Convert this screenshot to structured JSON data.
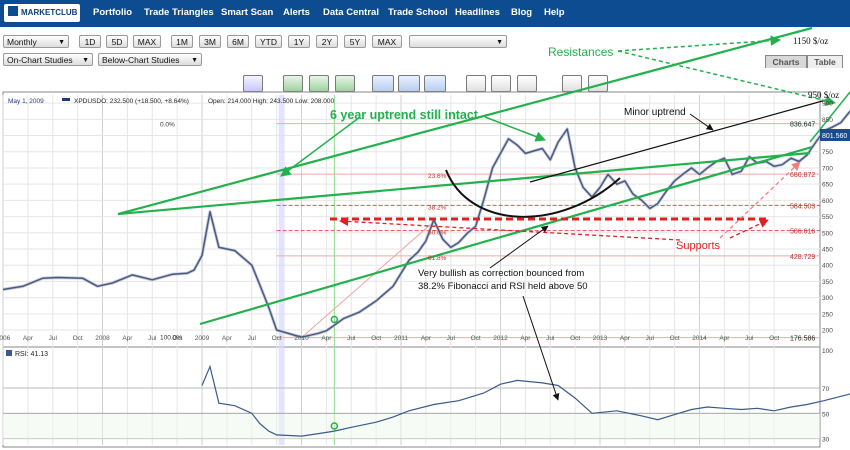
{
  "navbar": {
    "logo": "MARKETCLUB",
    "items": [
      "Portfolio",
      "Trade Triangles",
      "Smart Scan",
      "Alerts",
      "Data Central",
      "Trade School",
      "Headlines",
      "Blog",
      "Help"
    ]
  },
  "toolbar": {
    "period_select": "Monthly",
    "range_buttons": [
      "1D",
      "5D",
      "MAX",
      "1M",
      "3M",
      "6M",
      "YTD",
      "1Y",
      "2Y",
      "5Y",
      "MAX"
    ],
    "extra_select": "",
    "studies": {
      "on_chart": "On-Chart Studies",
      "below_chart": "Below-Chart Studies"
    },
    "tabs": [
      "Charts",
      "Table"
    ]
  },
  "colors": {
    "navbar": "#0e4c92",
    "price_line": "#4a5a7c",
    "trendline": "#22b14c",
    "annotation_green": "#22b14c",
    "support_red": "#e02020",
    "fib_line": "#f0a8a8",
    "grid": "#e6e6e6",
    "rsi_line": "#3a5a8c"
  },
  "chart_data": {
    "type": "line",
    "info_bar": {
      "date": "May 1, 2009",
      "symbol": "XPDUSDO: 232.500 (+18.500, +8.64%)",
      "ohlc": "Open: 214.000  High: 243.500  Low: 208.000"
    },
    "x_start": 2006.0,
    "y_axis_ticks": [
      200,
      250,
      300,
      350,
      400,
      450,
      500,
      550,
      600,
      650,
      700,
      750,
      800,
      850,
      900
    ],
    "ylim": [
      160,
      925
    ],
    "x_tick_labels": [
      "2006",
      "Apr",
      "Jul",
      "Oct",
      "2008",
      "Apr",
      "Jul",
      "Oct",
      "2009",
      "Apr",
      "Jul",
      "Oct",
      "2010",
      "Apr",
      "Jul",
      "Oct",
      "2011",
      "Apr",
      "Jul",
      "Oct",
      "2012",
      "Apr",
      "Jul",
      "Oct",
      "2013",
      "Apr",
      "Jul",
      "Oct",
      "2014",
      "Apr",
      "Jul",
      "Oct"
    ],
    "series": [
      {
        "values": [
          [
            2006.0,
            325
          ],
          [
            2006.2,
            335
          ],
          [
            2006.4,
            360
          ],
          [
            2006.55,
            362
          ],
          [
            2006.8,
            360
          ],
          [
            2006.95,
            335
          ],
          [
            2007.1,
            345
          ],
          [
            2007.3,
            370
          ],
          [
            2007.5,
            355
          ],
          [
            2007.7,
            372
          ],
          [
            2007.85,
            375
          ],
          [
            2007.92,
            385
          ],
          [
            2008.0,
            430
          ],
          [
            2008.08,
            565
          ],
          [
            2008.17,
            455
          ],
          [
            2008.33,
            445
          ],
          [
            2008.5,
            400
          ],
          [
            2008.58,
            340
          ],
          [
            2008.67,
            270
          ],
          [
            2008.75,
            200
          ],
          [
            2008.92,
            185
          ],
          [
            2009.0,
            178
          ],
          [
            2009.17,
            190
          ],
          [
            2009.25,
            198
          ],
          [
            2009.33,
            215
          ],
          [
            2009.42,
            235
          ],
          [
            2009.58,
            255
          ],
          [
            2009.75,
            290
          ],
          [
            2009.92,
            335
          ],
          [
            2010.08,
            415
          ],
          [
            2010.17,
            440
          ],
          [
            2010.25,
            475
          ],
          [
            2010.33,
            540
          ],
          [
            2010.42,
            480
          ],
          [
            2010.5,
            455
          ],
          [
            2010.58,
            470
          ],
          [
            2010.67,
            500
          ],
          [
            2010.75,
            520
          ],
          [
            2010.83,
            600
          ],
          [
            2010.92,
            700
          ],
          [
            2011.08,
            790
          ],
          [
            2011.17,
            770
          ],
          [
            2011.25,
            745
          ],
          [
            2011.42,
            760
          ],
          [
            2011.5,
            725
          ],
          [
            2011.58,
            780
          ],
          [
            2011.67,
            820
          ],
          [
            2011.75,
            700
          ],
          [
            2011.83,
            640
          ],
          [
            2011.92,
            610
          ],
          [
            2012.0,
            640
          ],
          [
            2012.08,
            680
          ],
          [
            2012.17,
            650
          ],
          [
            2012.25,
            660
          ],
          [
            2012.33,
            620
          ],
          [
            2012.42,
            600
          ],
          [
            2012.5,
            575
          ],
          [
            2012.58,
            590
          ],
          [
            2012.67,
            630
          ],
          [
            2012.75,
            660
          ],
          [
            2012.83,
            680
          ],
          [
            2012.92,
            700
          ],
          [
            2013.0,
            680
          ],
          [
            2013.08,
            700
          ],
          [
            2013.17,
            720
          ],
          [
            2013.25,
            730
          ],
          [
            2013.33,
            680
          ],
          [
            2013.42,
            690
          ],
          [
            2013.5,
            735
          ],
          [
            2013.58,
            715
          ],
          [
            2013.67,
            720
          ],
          [
            2013.75,
            705
          ],
          [
            2013.83,
            710
          ],
          [
            2013.92,
            730
          ],
          [
            2014.0,
            720
          ],
          [
            2014.08,
            740
          ],
          [
            2014.17,
            780
          ],
          [
            2014.25,
            815
          ],
          [
            2014.33,
            825
          ],
          [
            2014.42,
            840
          ],
          [
            2014.5,
            870
          ],
          [
            2014.58,
            895
          ],
          [
            2014.67,
            845
          ],
          [
            2014.75,
            775
          ],
          [
            2014.83,
            790
          ],
          [
            2014.92,
            800
          ],
          [
            2015.0,
            801
          ]
        ]
      }
    ],
    "fibonacci": [
      {
        "label": "100.0%",
        "value": 176.586
      },
      {
        "label": "61.8%",
        "value": 428.729
      },
      {
        "label": "50.0%",
        "value": 506.616
      },
      {
        "label": "38.2%",
        "value": 584.503
      },
      {
        "label": "23.6%",
        "value": 680.872
      },
      {
        "label": "0.0%",
        "value": 836.647
      }
    ],
    "right_value_labels": [
      "836.647",
      "680.872",
      "584.503",
      "506.616",
      "428.729",
      "176.586"
    ],
    "last_price_badge": "801.560",
    "annotations": {
      "resistances": "Resistances",
      "resistance_1150": "1150 $/oz",
      "resistance_950": "950 $/oz",
      "uptrend": "6 year uptrend still intact",
      "minor_uptrend": "Minor uptrend",
      "supports": "Supports",
      "comment_line1": "Very bullish as correction bounced from",
      "comment_line2": "38.2% Fibonacci and RSI held above 50"
    },
    "rsi": {
      "label": "RSI: 41.13",
      "ticks": [
        30,
        50,
        70,
        100
      ],
      "ylim": [
        25,
        100
      ],
      "values": [
        [
          2008.0,
          72
        ],
        [
          2008.08,
          87
        ],
        [
          2008.17,
          58
        ],
        [
          2008.33,
          56
        ],
        [
          2008.5,
          50
        ],
        [
          2008.58,
          42
        ],
        [
          2008.67,
          36
        ],
        [
          2008.75,
          33
        ],
        [
          2009.0,
          32
        ],
        [
          2009.17,
          34
        ],
        [
          2009.33,
          36
        ],
        [
          2009.5,
          39
        ],
        [
          2009.75,
          43
        ],
        [
          2009.92,
          47
        ],
        [
          2010.08,
          52
        ],
        [
          2010.33,
          57
        ],
        [
          2010.58,
          60
        ],
        [
          2010.83,
          66
        ],
        [
          2011.0,
          73
        ],
        [
          2011.17,
          76
        ],
        [
          2011.42,
          74
        ],
        [
          2011.58,
          72
        ],
        [
          2011.75,
          62
        ],
        [
          2011.92,
          50
        ],
        [
          2012.17,
          52
        ],
        [
          2012.42,
          48
        ],
        [
          2012.58,
          45
        ],
        [
          2012.75,
          49
        ],
        [
          2012.92,
          53
        ],
        [
          2013.08,
          55
        ],
        [
          2013.25,
          54
        ],
        [
          2013.42,
          53
        ],
        [
          2013.58,
          54
        ],
        [
          2013.75,
          52
        ],
        [
          2013.92,
          55
        ],
        [
          2014.08,
          57
        ],
        [
          2014.25,
          60
        ],
        [
          2014.5,
          65
        ],
        [
          2014.67,
          70
        ],
        [
          2014.75,
          53
        ],
        [
          2014.92,
          55
        ],
        [
          2015.0,
          55
        ]
      ]
    }
  }
}
